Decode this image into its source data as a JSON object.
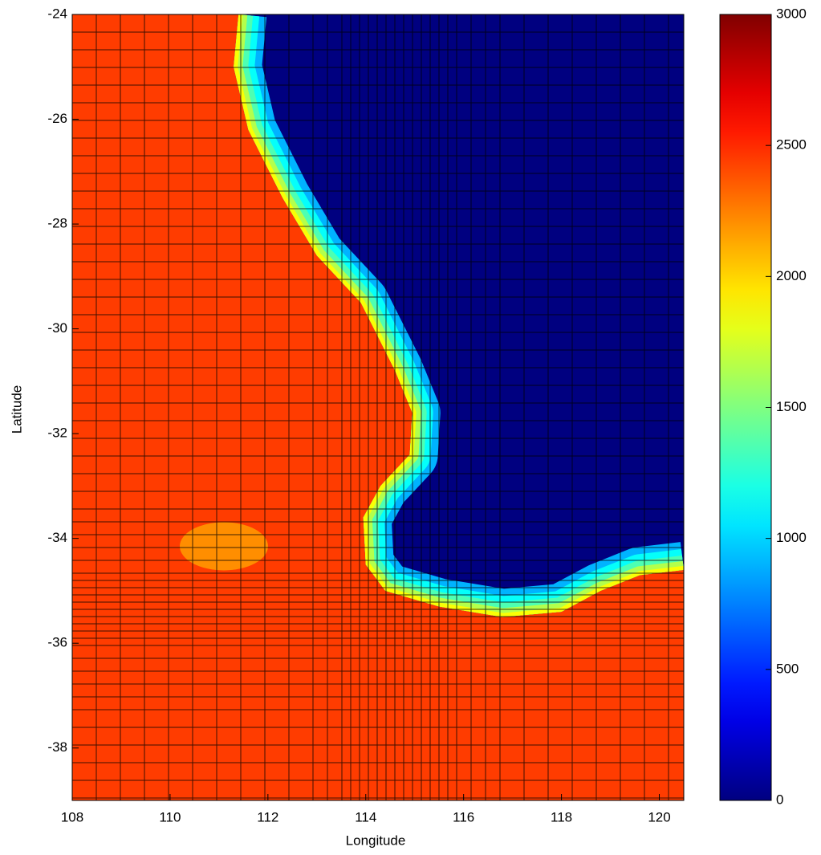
{
  "chart_data": {
    "type": "map",
    "xlabel": "Longitude",
    "ylabel": "Latitude",
    "xlim": [
      108,
      120.5
    ],
    "ylim": [
      -39,
      -24
    ],
    "xticks": [
      108,
      110,
      112,
      114,
      116,
      118,
      120
    ],
    "yticks": [
      -38,
      -36,
      -34,
      -32,
      -30,
      -28,
      -26,
      -24
    ],
    "colormap": "jet",
    "clim": [
      0,
      3000
    ],
    "cticks": [
      0,
      500,
      1000,
      1500,
      2000,
      2500,
      3000
    ],
    "z": [
      0,
      2450
    ],
    "x": [
      111.4,
      111.3,
      111.6,
      112.3,
      113.0,
      113.9,
      114.6,
      114.95,
      114.9,
      114.3,
      113.95,
      114.0,
      114.4,
      115.5,
      116.8,
      118.0,
      118.8,
      119.6,
      120.5
    ],
    "values": [
      -24,
      -25,
      -26.2,
      -27.5,
      -28.6,
      -29.5,
      -30.8,
      -31.6,
      -32.4,
      -33.0,
      -33.6,
      -34.5,
      -35.0,
      -35.3,
      -35.5,
      -35.4,
      -35.0,
      -34.7,
      -34.6
    ],
    "grid": true
  }
}
